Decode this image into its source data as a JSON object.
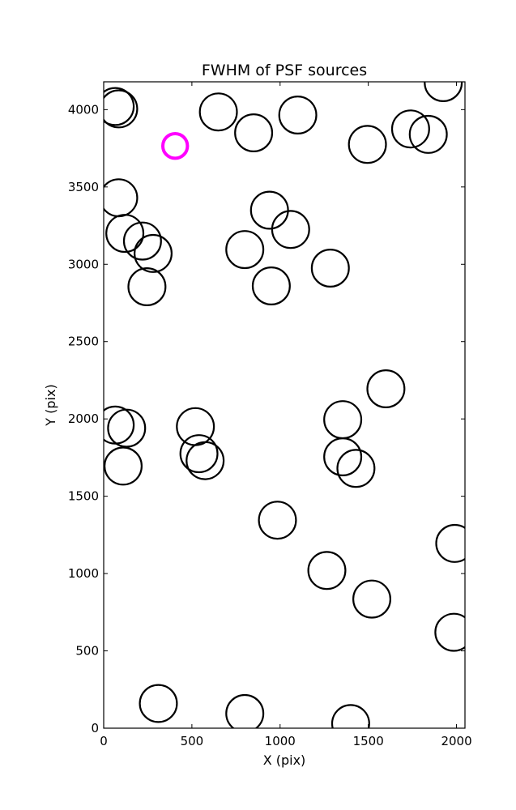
{
  "chart_data": {
    "type": "scatter",
    "title": "FWHM of PSF sources",
    "xlabel": "X (pix)",
    "ylabel": "Y (pix)",
    "xlim": [
      0,
      2048
    ],
    "ylim": [
      0,
      4180
    ],
    "x_ticks": [
      0,
      500,
      1000,
      1500,
      2000
    ],
    "y_ticks": [
      0,
      500,
      1000,
      1500,
      2000,
      2500,
      3000,
      3500,
      4000
    ],
    "x_tick_labels": [
      "0",
      "500",
      "1000",
      "1500",
      "2000"
    ],
    "y_tick_labels": [
      "0",
      "500",
      "1000",
      "1500",
      "2000",
      "2500",
      "3000",
      "3500",
      "4000"
    ],
    "grid": false,
    "marker": "open circle, diameter proportional to FWHM",
    "series": [
      {
        "color": "#000000",
        "points": [
          {
            "x": 85,
            "y": 4005,
            "size": 210
          },
          {
            "x": 65,
            "y": 4020,
            "size": 210
          },
          {
            "x": 650,
            "y": 3985,
            "size": 210
          },
          {
            "x": 1100,
            "y": 3965,
            "size": 210
          },
          {
            "x": 850,
            "y": 3850,
            "size": 210
          },
          {
            "x": 1495,
            "y": 3775,
            "size": 210
          },
          {
            "x": 1740,
            "y": 3875,
            "size": 210
          },
          {
            "x": 1840,
            "y": 3840,
            "size": 210
          },
          {
            "x": 1925,
            "y": 4175,
            "size": 210
          },
          {
            "x": 85,
            "y": 3430,
            "size": 210
          },
          {
            "x": 120,
            "y": 3200,
            "size": 210
          },
          {
            "x": 220,
            "y": 3150,
            "size": 210
          },
          {
            "x": 280,
            "y": 3070,
            "size": 210
          },
          {
            "x": 245,
            "y": 2855,
            "size": 210
          },
          {
            "x": 940,
            "y": 3350,
            "size": 210
          },
          {
            "x": 1060,
            "y": 3225,
            "size": 210
          },
          {
            "x": 800,
            "y": 3095,
            "size": 210
          },
          {
            "x": 950,
            "y": 2860,
            "size": 210
          },
          {
            "x": 1285,
            "y": 2975,
            "size": 210
          },
          {
            "x": 65,
            "y": 1960,
            "size": 210
          },
          {
            "x": 130,
            "y": 1940,
            "size": 210
          },
          {
            "x": 110,
            "y": 1695,
            "size": 210
          },
          {
            "x": 520,
            "y": 1950,
            "size": 210
          },
          {
            "x": 540,
            "y": 1775,
            "size": 210
          },
          {
            "x": 575,
            "y": 1730,
            "size": 210
          },
          {
            "x": 1600,
            "y": 2195,
            "size": 210
          },
          {
            "x": 1355,
            "y": 1995,
            "size": 210
          },
          {
            "x": 1355,
            "y": 1755,
            "size": 210
          },
          {
            "x": 1430,
            "y": 1680,
            "size": 210
          },
          {
            "x": 985,
            "y": 1345,
            "size": 210
          },
          {
            "x": 1265,
            "y": 1020,
            "size": 210
          },
          {
            "x": 1520,
            "y": 835,
            "size": 210
          },
          {
            "x": 1990,
            "y": 1195,
            "size": 210
          },
          {
            "x": 1985,
            "y": 620,
            "size": 210
          },
          {
            "x": 310,
            "y": 160,
            "size": 210
          },
          {
            "x": 800,
            "y": 95,
            "size": 210
          },
          {
            "x": 1400,
            "y": 30,
            "size": 210
          }
        ]
      },
      {
        "color": "#ff00ff",
        "points": [
          {
            "x": 405,
            "y": 3765,
            "size": 140
          }
        ]
      }
    ]
  }
}
